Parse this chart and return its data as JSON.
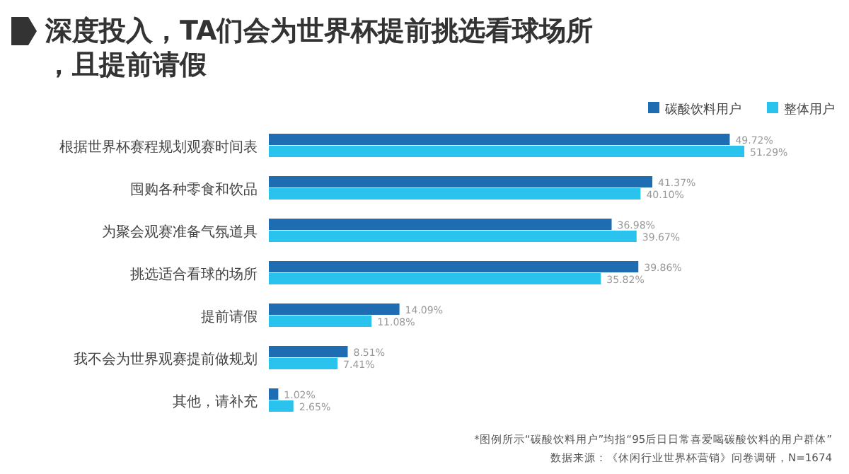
{
  "chart_data": {
    "type": "bar",
    "orientation": "horizontal",
    "title": "深度投入，TA们会为世界杯提前挑选看球场所，且提前请假",
    "categories": [
      "根据世界杯赛程规划观赛时间表",
      "囤购各种零食和饮品",
      "为聚会观赛准备气氛道具",
      "挑选适合看球的场所",
      "提前请假",
      "我不会为世界观赛提前做规划",
      "其他，请补充"
    ],
    "series": [
      {
        "name": "碳酸饮料用户",
        "color": "#1e6db3",
        "values": [
          49.72,
          41.37,
          36.98,
          39.86,
          14.09,
          8.51,
          1.02
        ],
        "value_labels": [
          "49.72%",
          "41.37%",
          "36.98%",
          "39.86%",
          "14.09%",
          "8.51%",
          "1.02%"
        ]
      },
      {
        "name": "整体用户",
        "color": "#29c3ee",
        "values": [
          51.29,
          40.1,
          39.67,
          35.82,
          11.08,
          7.41,
          2.65
        ],
        "value_labels": [
          "51.29%",
          "40.10%",
          "39.67%",
          "35.82%",
          "11.08%",
          "7.41%",
          "2.65%"
        ]
      }
    ],
    "legend": "top right",
    "annotations": [
      "*图例所示“碳酸饮料用户”均指“95后日日常喜爱喝碳酸饮料的用户群体”",
      "数据来源：《休闲行业世界杯营销》问卷调研，N=1674"
    ]
  }
}
